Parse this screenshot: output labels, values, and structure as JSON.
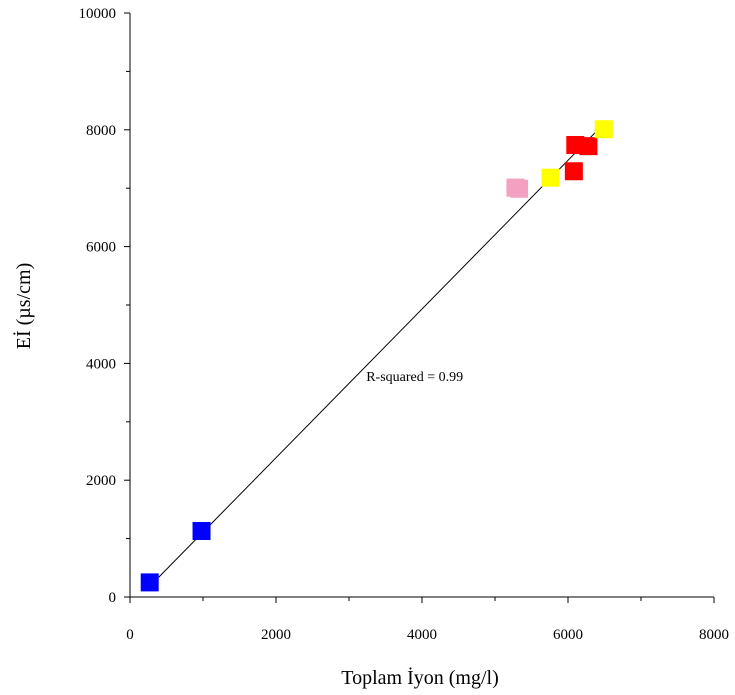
{
  "chart_data": {
    "type": "scatter",
    "title": "",
    "xlabel": "Toplam İyon (mg/l)",
    "ylabel": "Eİ (µs/cm)",
    "xlim": [
      0,
      8000
    ],
    "ylim": [
      0,
      10000
    ],
    "x_ticks": [
      0,
      2000,
      4000,
      6000,
      8000
    ],
    "y_ticks": [
      0,
      2000,
      4000,
      6000,
      8000,
      10000
    ],
    "x_tick_labels": [
      "0",
      "2000",
      "4000",
      "6000",
      "8000"
    ],
    "y_tick_labels": [
      "0",
      "2000",
      "4000",
      "6000",
      "8000",
      "10000"
    ],
    "minor_ticks": true,
    "grid": false,
    "marker": "square",
    "points": [
      {
        "x": 270,
        "y": 250,
        "color": "#0000ff"
      },
      {
        "x": 980,
        "y": 1130,
        "color": "#0000ff"
      },
      {
        "x": 5280,
        "y": 7010,
        "color": "#f4a0c0"
      },
      {
        "x": 5330,
        "y": 6990,
        "color": "#f4a0c0"
      },
      {
        "x": 5760,
        "y": 7180,
        "color": "#ffff00"
      },
      {
        "x": 6080,
        "y": 7290,
        "color": "#ff0000"
      },
      {
        "x": 6100,
        "y": 7740,
        "color": "#ff0000"
      },
      {
        "x": 6280,
        "y": 7720,
        "color": "#ff0000"
      },
      {
        "x": 6490,
        "y": 8010,
        "color": "#ffff00"
      }
    ],
    "regression_line": {
      "x": [
        230,
        6520
      ],
      "y": [
        130,
        8140
      ]
    },
    "annotations": [
      {
        "text": "R-squared = 0.99",
        "x": 3900,
        "y": 3700
      }
    ]
  }
}
